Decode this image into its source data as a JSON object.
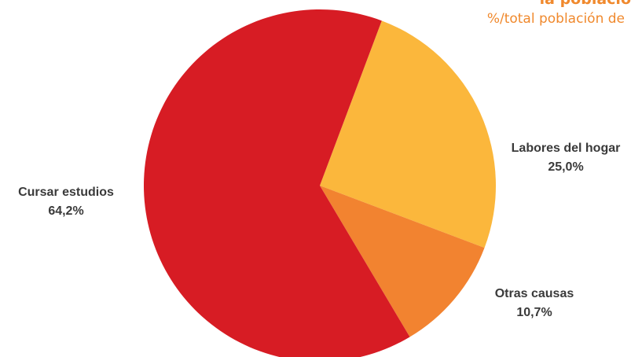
{
  "header": {
    "title": "la població",
    "subtitle": "%/total población de"
  },
  "chart_data": {
    "type": "pie",
    "title": "la població",
    "subtitle": "%/total población de",
    "slices": [
      {
        "label": "Labores del hogar",
        "value": 25.0,
        "value_label": "25,0%",
        "color": "#fbb73c"
      },
      {
        "label": "Otras causas",
        "value": 10.7,
        "value_label": "10,7%",
        "color": "#f28330"
      },
      {
        "label": "Cursar estudios",
        "value": 64.2,
        "value_label": "64,2%",
        "color": "#d71c24"
      }
    ],
    "legend": "none",
    "labels": "outside"
  }
}
